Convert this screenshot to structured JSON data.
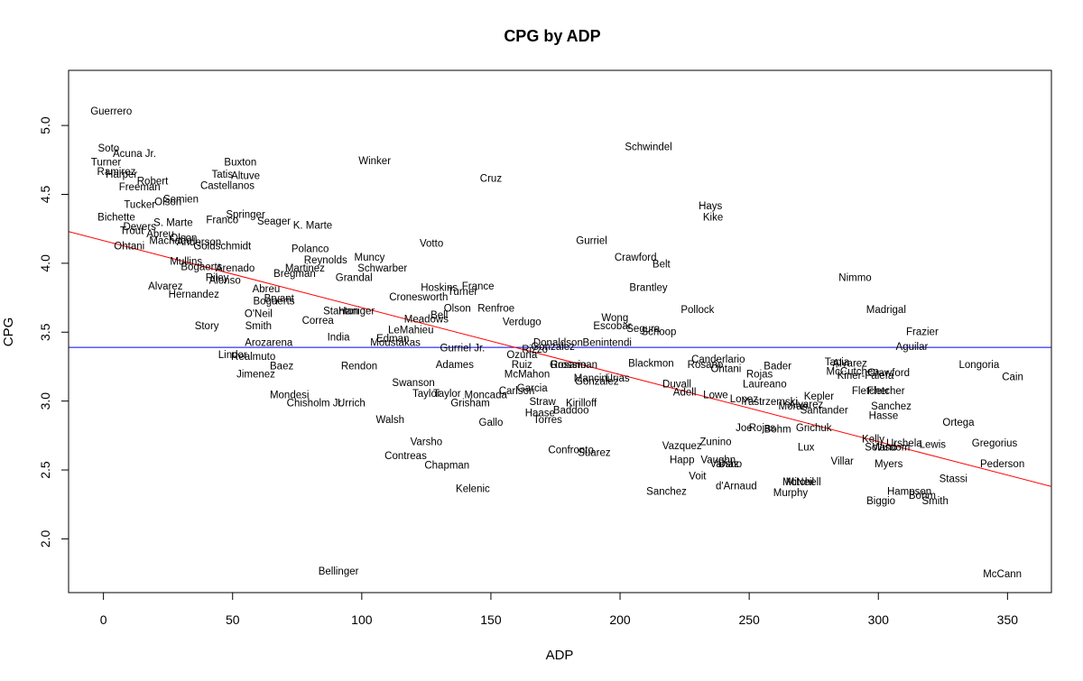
{
  "chart_data": {
    "type": "scatter",
    "title": "CPG by ADP",
    "xlabel": "ADP",
    "ylabel": "CPG",
    "xlim": [
      -13.5,
      367
    ],
    "ylim": [
      1.61,
      5.4
    ],
    "x_ticks": [
      0,
      50,
      100,
      150,
      200,
      250,
      300,
      350
    ],
    "x_tick_labels": [
      "0",
      "50",
      "100",
      "150",
      "200",
      "250",
      "300",
      "350"
    ],
    "y_ticks": [
      2.0,
      2.5,
      3.0,
      3.5,
      4.0,
      4.5,
      5.0
    ],
    "y_tick_labels": [
      "2.0",
      "2.5",
      "3.0",
      "3.5",
      "4.0",
      "4.5",
      "5.0"
    ],
    "grid": false,
    "legend": "none",
    "points_labeled_with_text": true,
    "colors": {
      "fit_line": "#ff0000",
      "mean_line": "#0000ff",
      "text": "#000000"
    },
    "fit_line": {
      "x": [
        -13.5,
        367
      ],
      "y": [
        4.23,
        2.38
      ]
    },
    "mean_line": {
      "y": 3.39
    },
    "points": [
      {
        "label": "Guerrero",
        "x": 3,
        "y": 5.1
      },
      {
        "label": "Soto",
        "x": 2,
        "y": 4.83
      },
      {
        "label": "Acuna Jr.",
        "x": 12,
        "y": 4.79
      },
      {
        "label": "Turner",
        "x": 1,
        "y": 4.73
      },
      {
        "label": "Ramirez",
        "x": 5,
        "y": 4.66
      },
      {
        "label": "Harper",
        "x": 7,
        "y": 4.64
      },
      {
        "label": "Robert",
        "x": 19,
        "y": 4.59
      },
      {
        "label": "Freeman",
        "x": 14,
        "y": 4.55
      },
      {
        "label": "Tucker",
        "x": 14,
        "y": 4.42
      },
      {
        "label": "Olson",
        "x": 25,
        "y": 4.44
      },
      {
        "label": "Semien",
        "x": 30,
        "y": 4.46
      },
      {
        "label": "Buxton",
        "x": 53,
        "y": 4.73
      },
      {
        "label": "Tatis",
        "x": 46,
        "y": 4.64
      },
      {
        "label": "Altuve",
        "x": 55,
        "y": 4.63
      },
      {
        "label": "Castellanos",
        "x": 48,
        "y": 4.56
      },
      {
        "label": "Winker",
        "x": 105,
        "y": 4.74
      },
      {
        "label": "Cruz",
        "x": 150,
        "y": 4.61
      },
      {
        "label": "Schwindel",
        "x": 211,
        "y": 4.84
      },
      {
        "label": "Hays",
        "x": 235,
        "y": 4.41
      },
      {
        "label": "Kike",
        "x": 236,
        "y": 4.33
      },
      {
        "label": "Bichette",
        "x": 5,
        "y": 4.33
      },
      {
        "label": "S. Marte",
        "x": 27,
        "y": 4.29
      },
      {
        "label": "Springer",
        "x": 55,
        "y": 4.35
      },
      {
        "label": "Franco",
        "x": 46,
        "y": 4.31
      },
      {
        "label": "Seager",
        "x": 66,
        "y": 4.3
      },
      {
        "label": "K. Marte",
        "x": 81,
        "y": 4.27
      },
      {
        "label": "Devers",
        "x": 14,
        "y": 4.26
      },
      {
        "label": "Trout",
        "x": 11,
        "y": 4.23
      },
      {
        "label": "Abreu",
        "x": 22,
        "y": 4.21
      },
      {
        "label": "Machado",
        "x": 26,
        "y": 4.16
      },
      {
        "label": "Olson",
        "x": 31,
        "y": 4.18
      },
      {
        "label": "Anderson",
        "x": 37,
        "y": 4.15
      },
      {
        "label": "Goldschmidt",
        "x": 46,
        "y": 4.12
      },
      {
        "label": "Ohtani",
        "x": 10,
        "y": 4.12
      },
      {
        "label": "Votto",
        "x": 127,
        "y": 4.14
      },
      {
        "label": "Gurriel",
        "x": 189,
        "y": 4.16
      },
      {
        "label": "Polanco",
        "x": 80,
        "y": 4.1
      },
      {
        "label": "Reynolds",
        "x": 86,
        "y": 4.02
      },
      {
        "label": "Muncy",
        "x": 103,
        "y": 4.04
      },
      {
        "label": "Crawford",
        "x": 206,
        "y": 4.04
      },
      {
        "label": "Belt",
        "x": 216,
        "y": 3.99
      },
      {
        "label": "Mullins",
        "x": 32,
        "y": 4.01
      },
      {
        "label": "Bogaerts",
        "x": 38,
        "y": 3.97
      },
      {
        "label": "Arenado",
        "x": 51,
        "y": 3.96
      },
      {
        "label": "Martinez",
        "x": 78,
        "y": 3.96
      },
      {
        "label": "Bregman",
        "x": 74,
        "y": 3.92
      },
      {
        "label": "Schwarber",
        "x": 108,
        "y": 3.96
      },
      {
        "label": "Riley",
        "x": 44,
        "y": 3.89
      },
      {
        "label": "Alonso",
        "x": 47,
        "y": 3.87
      },
      {
        "label": "Grandal",
        "x": 97,
        "y": 3.89
      },
      {
        "label": "Nimmo",
        "x": 291,
        "y": 3.89
      },
      {
        "label": "Alvarez",
        "x": 24,
        "y": 3.83
      },
      {
        "label": "Hoskins",
        "x": 130,
        "y": 3.82
      },
      {
        "label": "France",
        "x": 145,
        "y": 3.83
      },
      {
        "label": "Turner",
        "x": 139,
        "y": 3.79
      },
      {
        "label": "Brantley",
        "x": 211,
        "y": 3.82
      },
      {
        "label": "Hernandez",
        "x": 35,
        "y": 3.77
      },
      {
        "label": "Abreu",
        "x": 63,
        "y": 3.81
      },
      {
        "label": "Cronesworth",
        "x": 122,
        "y": 3.75
      },
      {
        "label": "Bogaerts",
        "x": 66,
        "y": 3.72
      },
      {
        "label": "Bryant",
        "x": 68,
        "y": 3.74
      },
      {
        "label": "Olson",
        "x": 137,
        "y": 3.67
      },
      {
        "label": "Renfroe",
        "x": 152,
        "y": 3.67
      },
      {
        "label": "Pollock",
        "x": 230,
        "y": 3.66
      },
      {
        "label": "Madrigal",
        "x": 303,
        "y": 3.66
      },
      {
        "label": "O'Neil",
        "x": 60,
        "y": 3.63
      },
      {
        "label": "Stanton",
        "x": 92,
        "y": 3.65
      },
      {
        "label": "Haniger",
        "x": 98,
        "y": 3.65
      },
      {
        "label": "Correa",
        "x": 83,
        "y": 3.58
      },
      {
        "label": "Meadows",
        "x": 125,
        "y": 3.59
      },
      {
        "label": "Bell",
        "x": 130,
        "y": 3.62
      },
      {
        "label": "Wong",
        "x": 198,
        "y": 3.6
      },
      {
        "label": "Escobar",
        "x": 197,
        "y": 3.54
      },
      {
        "label": "Verdugo",
        "x": 162,
        "y": 3.57
      },
      {
        "label": "Story",
        "x": 40,
        "y": 3.54
      },
      {
        "label": "Smith",
        "x": 60,
        "y": 3.54
      },
      {
        "label": "LeMahieu",
        "x": 119,
        "y": 3.51
      },
      {
        "label": "Segura",
        "x": 209,
        "y": 3.52
      },
      {
        "label": "Schoop",
        "x": 215,
        "y": 3.5
      },
      {
        "label": "Frazier",
        "x": 317,
        "y": 3.5
      },
      {
        "label": "India",
        "x": 91,
        "y": 3.46
      },
      {
        "label": "Edman",
        "x": 112,
        "y": 3.45
      },
      {
        "label": "Moustakas",
        "x": 113,
        "y": 3.42
      },
      {
        "label": "Arozarena",
        "x": 64,
        "y": 3.42
      },
      {
        "label": "Benintendi",
        "x": 195,
        "y": 3.42
      },
      {
        "label": "Donaldson",
        "x": 176,
        "y": 3.42
      },
      {
        "label": "Gonzalez",
        "x": 174,
        "y": 3.39
      },
      {
        "label": "Rizzo",
        "x": 167,
        "y": 3.37
      },
      {
        "label": "Gurriel Jr.",
        "x": 139,
        "y": 3.38
      },
      {
        "label": "Aguilar",
        "x": 313,
        "y": 3.39
      },
      {
        "label": "Lindor",
        "x": 50,
        "y": 3.33
      },
      {
        "label": "Realmuto",
        "x": 58,
        "y": 3.32
      },
      {
        "label": "Ozuna",
        "x": 162,
        "y": 3.33
      },
      {
        "label": "Canderlario",
        "x": 238,
        "y": 3.3
      },
      {
        "label": "Blackmon",
        "x": 212,
        "y": 3.27
      },
      {
        "label": "Rosario",
        "x": 233,
        "y": 3.26
      },
      {
        "label": "Ohtani",
        "x": 241,
        "y": 3.23
      },
      {
        "label": "Bader",
        "x": 261,
        "y": 3.25
      },
      {
        "label": "Tapia",
        "x": 284,
        "y": 3.28
      },
      {
        "label": "Alvarez",
        "x": 289,
        "y": 3.27
      },
      {
        "label": "Longoria",
        "x": 339,
        "y": 3.26
      },
      {
        "label": "Baez",
        "x": 69,
        "y": 3.25
      },
      {
        "label": "Rendon",
        "x": 99,
        "y": 3.25
      },
      {
        "label": "Adames",
        "x": 136,
        "y": 3.26
      },
      {
        "label": "Ruiz",
        "x": 162,
        "y": 3.26
      },
      {
        "label": "Rosario",
        "x": 180,
        "y": 3.26
      },
      {
        "label": "Grossman",
        "x": 182,
        "y": 3.26
      },
      {
        "label": "Jimenez",
        "x": 59,
        "y": 3.19
      },
      {
        "label": "McMahon",
        "x": 164,
        "y": 3.19
      },
      {
        "label": "Rojas",
        "x": 254,
        "y": 3.19
      },
      {
        "label": "McCutchen",
        "x": 290,
        "y": 3.21
      },
      {
        "label": "Kiner-Falefa",
        "x": 295,
        "y": 3.18
      },
      {
        "label": "Crawford",
        "x": 304,
        "y": 3.2
      },
      {
        "label": "Cain",
        "x": 352,
        "y": 3.17
      },
      {
        "label": "Mancini",
        "x": 189,
        "y": 3.16
      },
      {
        "label": "Gonzalez",
        "x": 191,
        "y": 3.14
      },
      {
        "label": "Urias",
        "x": 199,
        "y": 3.16
      },
      {
        "label": "Swanson",
        "x": 120,
        "y": 3.13
      },
      {
        "label": "Duvall",
        "x": 222,
        "y": 3.12
      },
      {
        "label": "Laureano",
        "x": 256,
        "y": 3.12
      },
      {
        "label": "Garcia",
        "x": 166,
        "y": 3.09
      },
      {
        "label": "Carlson",
        "x": 160,
        "y": 3.07
      },
      {
        "label": "Adell",
        "x": 225,
        "y": 3.06
      },
      {
        "label": "Fletcher",
        "x": 297,
        "y": 3.07
      },
      {
        "label": "Fletcher",
        "x": 303,
        "y": 3.07
      },
      {
        "label": "Taylor",
        "x": 125,
        "y": 3.05
      },
      {
        "label": "Taylor",
        "x": 133,
        "y": 3.05
      },
      {
        "label": "Moncada",
        "x": 148,
        "y": 3.04
      },
      {
        "label": "Mondesi",
        "x": 72,
        "y": 3.04
      },
      {
        "label": "Lowe",
        "x": 237,
        "y": 3.04
      },
      {
        "label": "Lopez",
        "x": 248,
        "y": 3.01
      },
      {
        "label": "Kepler",
        "x": 277,
        "y": 3.03
      },
      {
        "label": "Chisholm Jr.",
        "x": 82,
        "y": 2.98
      },
      {
        "label": "Urrich",
        "x": 96,
        "y": 2.98
      },
      {
        "label": "Grisham",
        "x": 142,
        "y": 2.98
      },
      {
        "label": "Straw",
        "x": 170,
        "y": 2.99
      },
      {
        "label": "Kirilloff",
        "x": 185,
        "y": 2.98
      },
      {
        "label": "Yastrzemski",
        "x": 258,
        "y": 2.99
      },
      {
        "label": "Alvarez",
        "x": 272,
        "y": 2.97
      },
      {
        "label": "Moran",
        "x": 267,
        "y": 2.96
      },
      {
        "label": "Sanchez",
        "x": 305,
        "y": 2.96
      },
      {
        "label": "Santander",
        "x": 279,
        "y": 2.93
      },
      {
        "label": "Hasse",
        "x": 302,
        "y": 2.89
      },
      {
        "label": "Haase",
        "x": 169,
        "y": 2.91
      },
      {
        "label": "Baddoo",
        "x": 181,
        "y": 2.93
      },
      {
        "label": "Torres",
        "x": 172,
        "y": 2.86
      },
      {
        "label": "Walsh",
        "x": 111,
        "y": 2.86
      },
      {
        "label": "Gallo",
        "x": 150,
        "y": 2.84
      },
      {
        "label": "Ortega",
        "x": 331,
        "y": 2.84
      },
      {
        "label": "Joe",
        "x": 248,
        "y": 2.8
      },
      {
        "label": "Rojas",
        "x": 255,
        "y": 2.8
      },
      {
        "label": "Bohm",
        "x": 261,
        "y": 2.79
      },
      {
        "label": "Grichuk",
        "x": 275,
        "y": 2.8
      },
      {
        "label": "Kelly",
        "x": 298,
        "y": 2.72
      },
      {
        "label": "Urshela",
        "x": 310,
        "y": 2.69
      },
      {
        "label": "Lewis",
        "x": 321,
        "y": 2.68
      },
      {
        "label": "Gregorius",
        "x": 345,
        "y": 2.69
      },
      {
        "label": "Varsho",
        "x": 125,
        "y": 2.7
      },
      {
        "label": "Zunino",
        "x": 237,
        "y": 2.7
      },
      {
        "label": "Vazquez",
        "x": 224,
        "y": 2.67
      },
      {
        "label": "Lux",
        "x": 272,
        "y": 2.66
      },
      {
        "label": "Wisdom",
        "x": 305,
        "y": 2.66
      },
      {
        "label": "Solano",
        "x": 301,
        "y": 2.66
      },
      {
        "label": "Confronto",
        "x": 181,
        "y": 2.64
      },
      {
        "label": "Suarez",
        "x": 190,
        "y": 2.62
      },
      {
        "label": "Contreas",
        "x": 117,
        "y": 2.6
      },
      {
        "label": "Happ",
        "x": 224,
        "y": 2.57
      },
      {
        "label": "Vaughn",
        "x": 238,
        "y": 2.57
      },
      {
        "label": "Villar",
        "x": 286,
        "y": 2.56
      },
      {
        "label": "Myers",
        "x": 304,
        "y": 2.54
      },
      {
        "label": "Pederson",
        "x": 348,
        "y": 2.54
      },
      {
        "label": "Chapman",
        "x": 133,
        "y": 2.53
      },
      {
        "label": "Varsho",
        "x": 241,
        "y": 2.54
      },
      {
        "label": "Diaz",
        "x": 242,
        "y": 2.54
      },
      {
        "label": "Voit",
        "x": 230,
        "y": 2.45
      },
      {
        "label": "Stassi",
        "x": 329,
        "y": 2.43
      },
      {
        "label": "McNeil",
        "x": 269,
        "y": 2.41
      },
      {
        "label": "Mitchell",
        "x": 271,
        "y": 2.41
      },
      {
        "label": "d'Arnaud",
        "x": 245,
        "y": 2.38
      },
      {
        "label": "Kelenic",
        "x": 143,
        "y": 2.36
      },
      {
        "label": "Sanchez",
        "x": 218,
        "y": 2.34
      },
      {
        "label": "Murphy",
        "x": 266,
        "y": 2.33
      },
      {
        "label": "Hampson",
        "x": 312,
        "y": 2.34
      },
      {
        "label": "Bohm",
        "x": 317,
        "y": 2.31
      },
      {
        "label": "Biggio",
        "x": 301,
        "y": 2.27
      },
      {
        "label": "Smith",
        "x": 322,
        "y": 2.27
      },
      {
        "label": "Bellinger",
        "x": 91,
        "y": 1.76
      },
      {
        "label": "McCann",
        "x": 348,
        "y": 1.74
      }
    ]
  }
}
